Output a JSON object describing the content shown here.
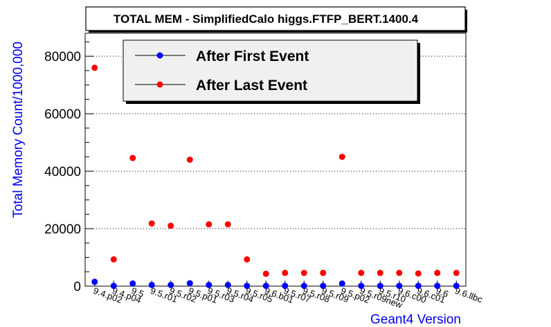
{
  "chart_data": {
    "type": "scatter",
    "title": "TOTAL MEM - SimplifiedCalo higgs.FTFP_BERT.1400.4",
    "xlabel": "Geant4 Version",
    "ylabel": "Total Memory Count/1000,000",
    "ylim": [
      0,
      88000
    ],
    "yticks": [
      0,
      20000,
      40000,
      60000,
      80000
    ],
    "grid": "y-dotted",
    "legend_position": "top",
    "categories": [
      "9.4.p02",
      "9.4.p04",
      "9.5",
      "9.5.r01",
      "9.5.r02",
      "9.5.p01",
      "9.5.r03",
      "9.5.r04",
      "9.5.r05",
      "9.6.b01",
      "9.5.r07",
      "9.5.r08",
      "9.5.r09",
      "9.5.p02",
      "9.5.r09new",
      "9.5.r10",
      "9.6.c00",
      "9.6.c01",
      "9.6",
      "9.6.llbc"
    ],
    "series": [
      {
        "name": "After First Event",
        "color": "#0000ff",
        "values": [
          1500,
          100,
          900,
          400,
          400,
          1000,
          400,
          400,
          100,
          100,
          100,
          100,
          100,
          900,
          100,
          100,
          100,
          100,
          100,
          100
        ]
      },
      {
        "name": "After Last Event",
        "color": "#ff0000",
        "values": [
          76000,
          9300,
          44600,
          21800,
          21000,
          44000,
          21500,
          21500,
          9300,
          4300,
          4600,
          4600,
          4600,
          45000,
          4600,
          4600,
          4600,
          4400,
          4600,
          4600
        ]
      }
    ]
  }
}
